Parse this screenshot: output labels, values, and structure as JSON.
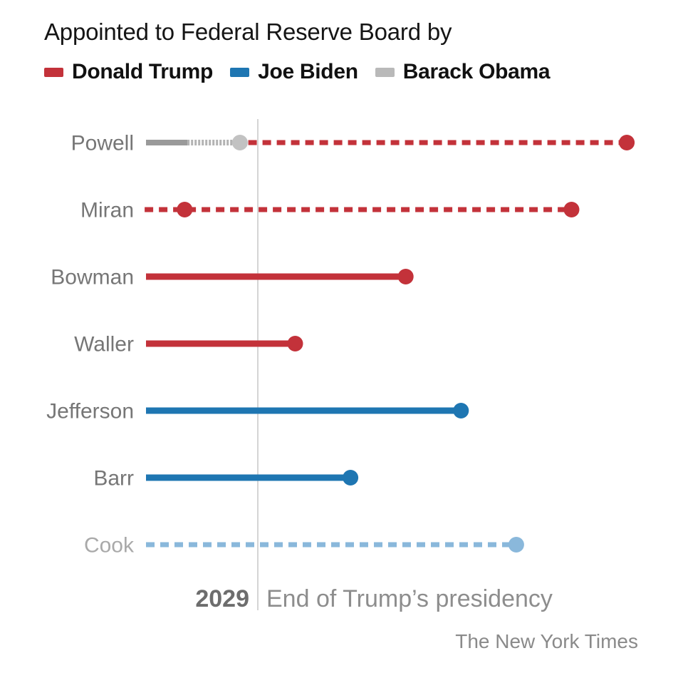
{
  "title": "Appointed to Federal Reserve Board by",
  "attribution": "The New York Times",
  "legend": {
    "items": [
      {
        "label": "Donald Trump",
        "color": "#c3323a"
      },
      {
        "label": "Joe Biden",
        "color": "#1e76b2"
      },
      {
        "label": "Barack Obama",
        "color": "#b9b9b9"
      }
    ]
  },
  "chart_data": {
    "type": "timeline",
    "title": "Appointed to Federal Reserve Board by",
    "legend_entries": [
      "Donald Trump",
      "Joe Biden",
      "Barack Obama"
    ],
    "x_axis": {
      "unit": "year",
      "tick_label": "2029",
      "reference_line": {
        "value": 2029,
        "label": "End of Trump’s presidency"
      },
      "estimated_range": [
        2024.7,
        2042.5
      ],
      "grid": false
    },
    "colors": {
      "trump": "#c3323a",
      "biden": "#1e76b2",
      "obama_solid": "#9a9a9a",
      "obama_faded": "#b3b3b3",
      "obama_dot": "#c2c2c2",
      "cook_contested": "#8ab8db",
      "reference_line": "#d5d5d5"
    },
    "rows": [
      {
        "name": "Powell",
        "appointed_by": "Barack Obama",
        "label_muted": false,
        "segments": [
          {
            "start": 2024.7,
            "end": 2026.2,
            "style": "solid",
            "color": "obama_solid",
            "width": 8
          },
          {
            "start": 2026.2,
            "end": 2028.1,
            "style": "fine-dash",
            "color": "obama_faded",
            "width": 8
          },
          {
            "start": 2028.4,
            "end": 2042.1,
            "style": "dashed",
            "color": "trump",
            "width": 7
          }
        ],
        "dots": [
          {
            "year": 2028.1,
            "color": "obama_dot"
          },
          {
            "year": 2042.1,
            "color": "trump"
          }
        ]
      },
      {
        "name": "Miran",
        "appointed_by": "Donald Trump",
        "label_muted": false,
        "segments": [
          {
            "start": 2024.65,
            "end": 2040.1,
            "style": "dashed",
            "color": "trump",
            "width": 7
          }
        ],
        "dots": [
          {
            "year": 2026.1,
            "color": "trump"
          },
          {
            "year": 2040.1,
            "color": "trump"
          }
        ]
      },
      {
        "name": "Bowman",
        "appointed_by": "Donald Trump",
        "label_muted": false,
        "segments": [
          {
            "start": 2024.7,
            "end": 2034.1,
            "style": "solid",
            "color": "trump",
            "width": 9
          }
        ],
        "dots": [
          {
            "year": 2034.1,
            "color": "trump"
          }
        ]
      },
      {
        "name": "Waller",
        "appointed_by": "Donald Trump",
        "label_muted": false,
        "segments": [
          {
            "start": 2024.7,
            "end": 2030.1,
            "style": "solid",
            "color": "trump",
            "width": 9
          }
        ],
        "dots": [
          {
            "year": 2030.1,
            "color": "trump"
          }
        ]
      },
      {
        "name": "Jefferson",
        "appointed_by": "Joe Biden",
        "label_muted": false,
        "segments": [
          {
            "start": 2024.7,
            "end": 2036.1,
            "style": "solid",
            "color": "biden",
            "width": 9
          }
        ],
        "dots": [
          {
            "year": 2036.1,
            "color": "biden"
          }
        ]
      },
      {
        "name": "Barr",
        "appointed_by": "Joe Biden",
        "label_muted": false,
        "segments": [
          {
            "start": 2024.7,
            "end": 2032.1,
            "style": "solid",
            "color": "biden",
            "width": 9
          }
        ],
        "dots": [
          {
            "year": 2032.1,
            "color": "biden"
          }
        ]
      },
      {
        "name": "Cook",
        "appointed_by": "Joe Biden",
        "label_muted": true,
        "segments": [
          {
            "start": 2024.7,
            "end": 2038.1,
            "style": "dashed",
            "color": "cook_contested",
            "width": 7
          }
        ],
        "dots": [
          {
            "year": 2038.1,
            "color": "cook_contested"
          }
        ]
      }
    ]
  }
}
